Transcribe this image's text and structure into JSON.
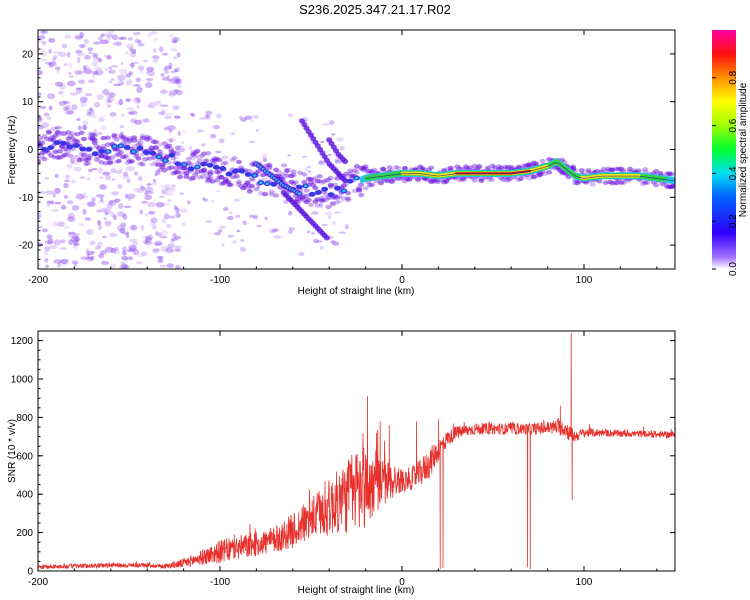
{
  "title": "S236.2025.347.21.17.R02",
  "colors": {
    "snr_line": "#e8302c",
    "axis": "#000000",
    "spec_bg_dots": "#8a3df0",
    "ridge_red": "#e01818",
    "ridge_yellow": "#f2e21e",
    "ridge_green": "#35d04a",
    "ridge_cyan": "#23c7e8",
    "ridge_blue": "#3a36e6"
  },
  "chart_data": [
    {
      "type": "heatmap",
      "title": "S236.2025.347.21.17.R02",
      "xlabel": "Height of straight line (km)",
      "ylabel": "Frequency (Hz)",
      "xlim": [
        -200,
        150
      ],
      "ylim": [
        -25,
        25
      ],
      "xticks": [
        -200,
        -100,
        0,
        100
      ],
      "yticks": [
        -20,
        -10,
        0,
        10,
        20
      ],
      "xtick_labels": [
        "-200",
        "-100",
        "0",
        "100"
      ],
      "ytick_labels": [
        "-20",
        "-10",
        "0",
        "10",
        "20"
      ],
      "ridge": {
        "x": [
          -200,
          -190,
          -180,
          -170,
          -160,
          -150,
          -140,
          -130,
          -120,
          -110,
          -100,
          -90,
          -80,
          -70,
          -60,
          -50,
          -40,
          -30,
          -20,
          -10,
          0,
          10,
          20,
          30,
          40,
          50,
          60,
          70,
          80,
          85,
          90,
          95,
          100,
          110,
          120,
          130,
          140,
          150
        ],
        "y": [
          0.5,
          1,
          0.5,
          0,
          0,
          0,
          -0.5,
          -1.5,
          -3,
          -3.5,
          -4,
          -5,
          -6,
          -6.5,
          -7.5,
          -8.5,
          -9,
          -7.5,
          -6,
          -5.5,
          -5,
          -5,
          -5.5,
          -5,
          -5,
          -5,
          -5,
          -4.5,
          -3.5,
          -2.5,
          -4,
          -5.5,
          -6,
          -5.5,
          -5.5,
          -5.5,
          -6,
          -6.5
        ],
        "amplitude": [
          0.25,
          0.25,
          0.3,
          0.3,
          0.35,
          0.35,
          0.3,
          0.35,
          0.4,
          0.4,
          0.35,
          0.3,
          0.35,
          0.4,
          0.35,
          0.35,
          0.3,
          0.35,
          0.5,
          0.6,
          0.7,
          0.8,
          0.8,
          0.85,
          0.95,
          0.95,
          0.9,
          0.85,
          0.7,
          0.55,
          0.5,
          0.55,
          0.75,
          0.85,
          0.8,
          0.7,
          0.55,
          0.45
        ]
      },
      "side_streaks": [
        {
          "x": [
            -80,
            -75,
            -70,
            -65,
            -60,
            -55
          ],
          "y": [
            -3,
            -4.5,
            -6,
            -7.5,
            -8.5,
            -9.5
          ]
        },
        {
          "x": [
            -65,
            -60,
            -55,
            -50,
            -45,
            -40
          ],
          "y": [
            -9,
            -11,
            -13,
            -15,
            -17,
            -19
          ]
        },
        {
          "x": [
            -55,
            -50,
            -45,
            -40,
            -35,
            -30
          ],
          "y": [
            6,
            3,
            0,
            -3,
            -5,
            -7
          ]
        },
        {
          "x": [
            -40,
            -35,
            -30
          ],
          "y": [
            2,
            -1,
            -3
          ]
        }
      ],
      "colorbar": {
        "label": "Normalized spectral amplitude",
        "range": [
          0.0,
          1.0
        ],
        "ticks": [
          0.0,
          0.2,
          0.4,
          0.6,
          0.8
        ],
        "tick_labels": [
          "0.0",
          "0.2",
          "0.4",
          "0.6",
          "0.8"
        ]
      },
      "grid": false
    },
    {
      "type": "line",
      "title": "",
      "xlabel": "Height of straight line (km)",
      "ylabel": "SNR (10 * v/v)",
      "xlim": [
        -200,
        150
      ],
      "ylim": [
        0,
        1250
      ],
      "xticks": [
        -200,
        -100,
        0,
        100
      ],
      "yticks": [
        0,
        200,
        400,
        600,
        800,
        1000,
        1200
      ],
      "xtick_labels": [
        "-200",
        "-100",
        "0",
        "100"
      ],
      "ytick_labels": [
        "0",
        "200",
        "400",
        "600",
        "800",
        "1000",
        "1200"
      ],
      "series": [
        {
          "name": "SNR",
          "envelope": {
            "x": [
              -200,
              -180,
              -160,
              -140,
              -130,
              -120,
              -110,
              -100,
              -90,
              -80,
              -70,
              -60,
              -50,
              -40,
              -35,
              -30,
              -25,
              -20,
              -15,
              -10,
              -5,
              0,
              5,
              10,
              15,
              20,
              25,
              30,
              40,
              50,
              60,
              70,
              80,
              85,
              90,
              92,
              95,
              100,
              110,
              120,
              130,
              140,
              150
            ],
            "y": [
              20,
              25,
              30,
              30,
              25,
              40,
              70,
              100,
              120,
              140,
              160,
              210,
              270,
              330,
              360,
              390,
              430,
              440,
              450,
              460,
              470,
              470,
              480,
              510,
              560,
              630,
              690,
              720,
              740,
              740,
              740,
              740,
              745,
              750,
              740,
              720,
              700,
              720,
              720,
              715,
              715,
              710,
              710
            ],
            "noise": [
              10,
              12,
              12,
              12,
              12,
              25,
              40,
              60,
              65,
              65,
              70,
              90,
              110,
              150,
              170,
              200,
              220,
              240,
              150,
              120,
              100,
              60,
              60,
              70,
              80,
              60,
              40,
              35,
              30,
              30,
              30,
              30,
              35,
              40,
              45,
              45,
              30,
              25,
              20,
              18,
              18,
              18,
              18
            ]
          },
          "spikes": [
            {
              "x": -19,
              "y": 910
            },
            {
              "x": -14,
              "y": 720
            },
            {
              "x": -12,
              "y": 780
            },
            {
              "x": -7,
              "y": 760
            },
            {
              "x": 8,
              "y": 780
            },
            {
              "x": 20,
              "y": 790
            },
            {
              "x": 87,
              "y": 860
            },
            {
              "x": 93,
              "y": 1240
            }
          ],
          "dips": [
            {
              "x": 21,
              "y": 10
            },
            {
              "x": 22.5,
              "y": 15
            },
            {
              "x": 69,
              "y": 20
            },
            {
              "x": 70.5,
              "y": 10
            },
            {
              "x": 93.5,
              "y": 370
            }
          ]
        }
      ],
      "grid": false
    }
  ]
}
